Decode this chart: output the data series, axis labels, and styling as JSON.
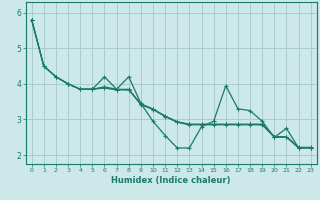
{
  "xlabel": "Humidex (Indice chaleur)",
  "bg_color": "#cce8e8",
  "grid_color": "#aacccc",
  "line_color": "#1a7a6e",
  "xlim": [
    -0.5,
    23.5
  ],
  "ylim": [
    1.75,
    6.3
  ],
  "yticks": [
    2,
    3,
    4,
    5,
    6
  ],
  "xticks": [
    0,
    1,
    2,
    3,
    4,
    5,
    6,
    7,
    8,
    9,
    10,
    11,
    12,
    13,
    14,
    15,
    16,
    17,
    18,
    19,
    20,
    21,
    22,
    23
  ],
  "series_main": [
    5.8,
    4.5,
    4.2,
    4.0,
    3.85,
    3.85,
    4.2,
    3.85,
    4.2,
    3.45,
    2.95,
    2.55,
    2.2,
    2.2,
    2.8,
    2.95,
    3.95,
    3.3,
    3.25,
    2.95,
    2.5,
    2.75,
    2.2,
    2.2
  ],
  "series_trend1": [
    5.8,
    4.5,
    4.2,
    4.0,
    3.85,
    3.85,
    3.88,
    3.83,
    3.83,
    3.42,
    3.28,
    3.08,
    2.92,
    2.85,
    2.85,
    2.85,
    2.85,
    2.85,
    2.85,
    2.85,
    2.5,
    2.5,
    2.2,
    2.2
  ],
  "series_trend2": [
    5.8,
    4.5,
    4.2,
    4.0,
    3.85,
    3.85,
    3.9,
    3.84,
    3.84,
    3.43,
    3.29,
    3.09,
    2.93,
    2.86,
    2.86,
    2.86,
    2.86,
    2.86,
    2.86,
    2.86,
    2.51,
    2.51,
    2.21,
    2.21
  ],
  "series_trend3": [
    5.8,
    4.5,
    4.2,
    4.0,
    3.85,
    3.85,
    3.92,
    3.85,
    3.85,
    3.44,
    3.3,
    3.1,
    2.94,
    2.87,
    2.87,
    2.87,
    2.87,
    2.87,
    2.87,
    2.87,
    2.52,
    2.52,
    2.22,
    2.22
  ]
}
